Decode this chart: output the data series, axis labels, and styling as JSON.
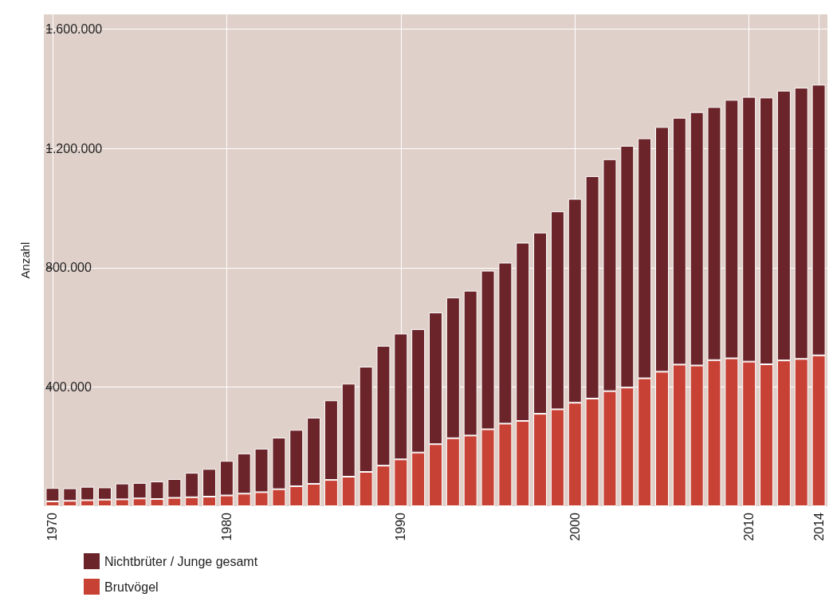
{
  "chart_data": {
    "type": "bar",
    "stacked": true,
    "ylabel": "Anzahl",
    "categories": [
      "1970",
      null,
      null,
      null,
      null,
      null,
      null,
      null,
      null,
      null,
      "1980",
      null,
      null,
      null,
      null,
      null,
      null,
      null,
      null,
      null,
      "1990",
      null,
      null,
      null,
      null,
      null,
      null,
      null,
      null,
      null,
      "2000",
      null,
      null,
      null,
      null,
      null,
      null,
      null,
      null,
      null,
      "2010",
      null,
      null,
      null,
      "2014"
    ],
    "series": [
      {
        "name": "Brutvögel",
        "color": "#c84135",
        "values": [
          16000,
          18000,
          20000,
          22000,
          23000,
          26000,
          24000,
          28000,
          30000,
          32000,
          36000,
          42000,
          47000,
          57000,
          67000,
          75000,
          88000,
          99000,
          115000,
          136000,
          157000,
          180000,
          208000,
          228000,
          237000,
          258000,
          277000,
          286000,
          310000,
          325000,
          347000,
          361000,
          386000,
          398000,
          429000,
          451000,
          475000,
          472000,
          490000,
          496000,
          485000,
          476000,
          489000,
          494000,
          506000
        ]
      },
      {
        "name": "Nichtbrüter / Junge gesamt",
        "color": "#6b2429",
        "values": [
          45000,
          42000,
          45000,
          41000,
          53000,
          52000,
          59000,
          63000,
          82000,
          93000,
          116000,
          135000,
          146000,
          173000,
          189000,
          222000,
          267000,
          312000,
          353000,
          402000,
          422000,
          414000,
          442000,
          472000,
          486000,
          532000,
          540000,
          598000,
          608000,
          664000,
          684000,
          746000,
          778000,
          811000,
          805000,
          821000,
          828000,
          850000,
          849000,
          867000,
          888000,
          895000,
          905000,
          910000,
          908000
        ]
      }
    ],
    "ylim": [
      0,
      1650000
    ],
    "yticks": [
      {
        "value": 400000,
        "label": "400.000"
      },
      {
        "value": 800000,
        "label": "800.000"
      },
      {
        "value": 1200000,
        "label": "1.200.000"
      },
      {
        "value": 1600000,
        "label": "1.600.000"
      }
    ],
    "grid": true,
    "legend": "bottom left"
  }
}
